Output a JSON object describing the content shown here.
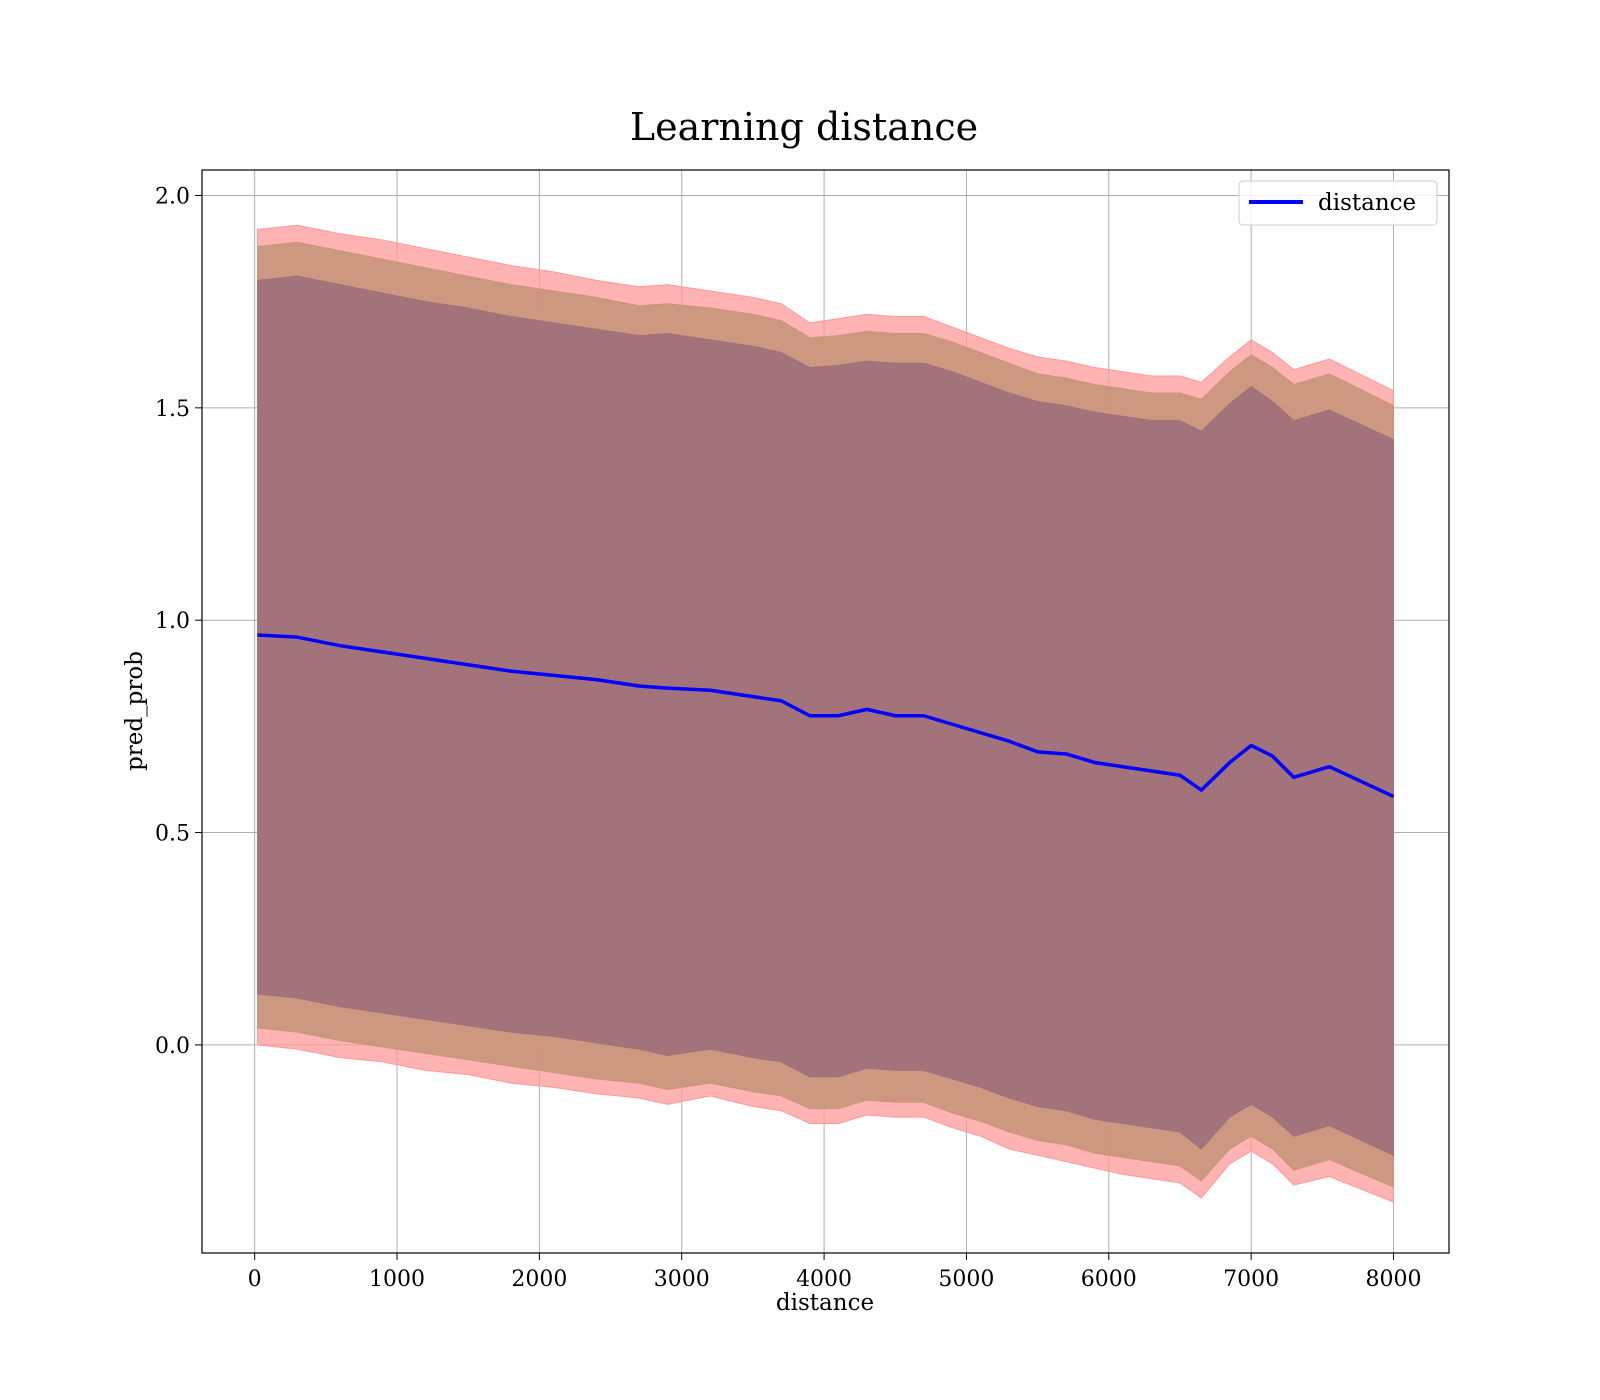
{
  "chart_data": {
    "type": "line",
    "title": "Learning distance",
    "xlabel": "distance",
    "ylabel": "pred_prob",
    "xlim": [
      -370,
      8390
    ],
    "ylim": [
      -0.49,
      2.06
    ],
    "xticks": [
      0,
      1000,
      2000,
      3000,
      4000,
      5000,
      6000,
      7000,
      8000
    ],
    "yticks": [
      0.0,
      0.5,
      1.0,
      1.5,
      2.0
    ],
    "xtick_labels": [
      "0",
      "1000",
      "2000",
      "3000",
      "4000",
      "5000",
      "6000",
      "7000",
      "8000"
    ],
    "ytick_labels": [
      "0.0",
      "0.5",
      "1.0",
      "1.5",
      "2.0"
    ],
    "grid": true,
    "legend_position": "top-right",
    "colors": {
      "line": "#0000ff",
      "band_outer": "#ff9999",
      "band_middle": "#c8957a",
      "band_inner": "#a0717a",
      "grid": "#b0b0b0",
      "frame": "#000000"
    },
    "series": [
      {
        "name": "distance",
        "x": [
          20,
          300,
          600,
          900,
          1200,
          1500,
          1800,
          2100,
          2400,
          2700,
          2900,
          3200,
          3500,
          3700,
          3900,
          4100,
          4300,
          4500,
          4700,
          4900,
          5100,
          5300,
          5500,
          5700,
          5900,
          6100,
          6300,
          6500,
          6650,
          6850,
          7000,
          7150,
          7300,
          7550,
          8000
        ],
        "y": [
          0.965,
          0.96,
          0.94,
          0.925,
          0.91,
          0.895,
          0.88,
          0.87,
          0.86,
          0.845,
          0.84,
          0.835,
          0.82,
          0.81,
          0.775,
          0.775,
          0.79,
          0.775,
          0.775,
          0.755,
          0.735,
          0.715,
          0.69,
          0.685,
          0.665,
          0.655,
          0.645,
          0.635,
          0.6,
          0.665,
          0.705,
          0.68,
          0.63,
          0.655,
          0.585
        ]
      }
    ],
    "bands": [
      {
        "x": [
          20,
          300,
          600,
          900,
          1200,
          1500,
          1800,
          2100,
          2400,
          2700,
          2900,
          3200,
          3500,
          3700,
          3900,
          4100,
          4300,
          4500,
          4700,
          4900,
          5100,
          5300,
          5500,
          5700,
          5900,
          6100,
          6300,
          6500,
          6650,
          6850,
          7000,
          7150,
          7300,
          7550,
          8000
        ],
        "upper": [
          1.92,
          1.93,
          1.91,
          1.895,
          1.875,
          1.855,
          1.835,
          1.82,
          1.8,
          1.785,
          1.79,
          1.775,
          1.76,
          1.745,
          1.7,
          1.71,
          1.72,
          1.715,
          1.715,
          1.69,
          1.665,
          1.64,
          1.62,
          1.61,
          1.595,
          1.585,
          1.575,
          1.575,
          1.56,
          1.62,
          1.66,
          1.63,
          1.59,
          1.615,
          1.54
        ],
        "lower": [
          0.0,
          -0.01,
          -0.03,
          -0.04,
          -0.06,
          -0.07,
          -0.09,
          -0.1,
          -0.115,
          -0.125,
          -0.14,
          -0.12,
          -0.145,
          -0.155,
          -0.185,
          -0.185,
          -0.165,
          -0.17,
          -0.17,
          -0.195,
          -0.215,
          -0.245,
          -0.26,
          -0.275,
          -0.29,
          -0.305,
          -0.315,
          -0.325,
          -0.36,
          -0.28,
          -0.25,
          -0.28,
          -0.33,
          -0.31,
          -0.37
        ]
      },
      {
        "x": [
          20,
          300,
          600,
          900,
          1200,
          1500,
          1800,
          2100,
          2400,
          2700,
          2900,
          3200,
          3500,
          3700,
          3900,
          4100,
          4300,
          4500,
          4700,
          4900,
          5100,
          5300,
          5500,
          5700,
          5900,
          6100,
          6300,
          6500,
          6650,
          6850,
          7000,
          7150,
          7300,
          7550,
          8000
        ],
        "upper": [
          1.88,
          1.89,
          1.87,
          1.85,
          1.83,
          1.81,
          1.79,
          1.775,
          1.76,
          1.74,
          1.745,
          1.735,
          1.72,
          1.705,
          1.665,
          1.67,
          1.68,
          1.675,
          1.675,
          1.655,
          1.63,
          1.605,
          1.58,
          1.57,
          1.555,
          1.545,
          1.535,
          1.535,
          1.52,
          1.585,
          1.625,
          1.595,
          1.555,
          1.58,
          1.505
        ],
        "lower": [
          0.04,
          0.03,
          0.01,
          -0.005,
          -0.02,
          -0.035,
          -0.05,
          -0.065,
          -0.08,
          -0.09,
          -0.105,
          -0.09,
          -0.11,
          -0.12,
          -0.15,
          -0.15,
          -0.13,
          -0.135,
          -0.135,
          -0.16,
          -0.18,
          -0.205,
          -0.225,
          -0.235,
          -0.255,
          -0.265,
          -0.275,
          -0.285,
          -0.32,
          -0.245,
          -0.215,
          -0.245,
          -0.295,
          -0.27,
          -0.335
        ]
      },
      {
        "x": [
          20,
          300,
          600,
          900,
          1200,
          1500,
          1800,
          2100,
          2400,
          2700,
          2900,
          3200,
          3500,
          3700,
          3900,
          4100,
          4300,
          4500,
          4700,
          4900,
          5100,
          5300,
          5500,
          5700,
          5900,
          6100,
          6300,
          6500,
          6650,
          6850,
          7000,
          7150,
          7300,
          7550,
          8000
        ],
        "upper": [
          1.8,
          1.81,
          1.79,
          1.77,
          1.75,
          1.735,
          1.715,
          1.7,
          1.685,
          1.67,
          1.675,
          1.66,
          1.645,
          1.63,
          1.595,
          1.6,
          1.61,
          1.605,
          1.605,
          1.585,
          1.56,
          1.535,
          1.515,
          1.505,
          1.49,
          1.48,
          1.47,
          1.47,
          1.445,
          1.51,
          1.55,
          1.515,
          1.47,
          1.495,
          1.425
        ],
        "lower": [
          0.12,
          0.11,
          0.09,
          0.075,
          0.06,
          0.045,
          0.03,
          0.02,
          0.005,
          -0.01,
          -0.025,
          -0.01,
          -0.03,
          -0.04,
          -0.075,
          -0.075,
          -0.055,
          -0.06,
          -0.06,
          -0.08,
          -0.1,
          -0.125,
          -0.145,
          -0.155,
          -0.175,
          -0.185,
          -0.195,
          -0.205,
          -0.245,
          -0.17,
          -0.14,
          -0.17,
          -0.215,
          -0.19,
          -0.26
        ]
      }
    ]
  }
}
